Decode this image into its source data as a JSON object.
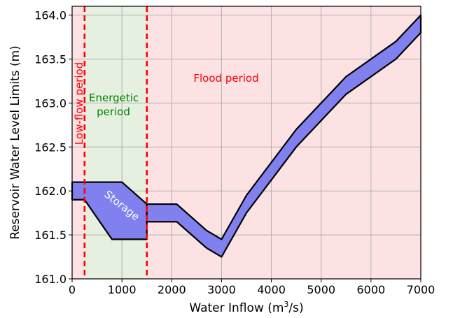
{
  "chart_data": {
    "type": "area",
    "xlabel": "Water Inflow (m",
    "xlabel_sup": "3",
    "xlabel_tail": "/s)",
    "ylabel": "Reservoir Water Level Limits (m)",
    "xlim": [
      0,
      7000
    ],
    "ylim": [
      161.0,
      164.1
    ],
    "x_ticks": [
      0,
      1000,
      2000,
      3000,
      4000,
      5000,
      6000,
      7000
    ],
    "x_tick_labels": [
      "0",
      "1000",
      "2000",
      "3000",
      "4000",
      "5000",
      "6000",
      "7000"
    ],
    "y_ticks": [
      161.0,
      161.5,
      162.0,
      162.5,
      163.0,
      163.5,
      164.0
    ],
    "y_tick_labels": [
      "161.0",
      "161.5",
      "162.0",
      "162.5",
      "163.0",
      "163.5",
      "164.0"
    ],
    "grid": true,
    "regions": [
      {
        "label": "Low-flow period",
        "x_start": 0,
        "x_end": 250,
        "color": "#fde2e4"
      },
      {
        "label_line1": "Energetic",
        "label_line2": "period",
        "x_start": 250,
        "x_end": 1500,
        "color": "#e6f0e1"
      },
      {
        "label": "Flood period",
        "x_start": 1500,
        "x_end": 7000,
        "color": "#fde2e4"
      }
    ],
    "boundaries": [
      250,
      1500
    ],
    "bands": [
      {
        "label": "Storage",
        "color": "#8080ee",
        "upper": [
          [
            0,
            162.1
          ],
          [
            1000,
            162.1
          ],
          [
            1500,
            161.85
          ]
        ],
        "lower": [
          [
            0,
            161.9
          ],
          [
            250,
            161.9
          ],
          [
            800,
            161.45
          ],
          [
            1500,
            161.45
          ]
        ]
      },
      {
        "color": "#8080ee",
        "upper": [
          [
            1500,
            161.85
          ],
          [
            2100,
            161.85
          ],
          [
            2700,
            161.55
          ],
          [
            3000,
            161.45
          ],
          [
            3500,
            161.95
          ],
          [
            4500,
            162.7
          ],
          [
            5500,
            163.3
          ],
          [
            6500,
            163.7
          ],
          [
            7000,
            164.0
          ]
        ],
        "lower": [
          [
            1500,
            161.65
          ],
          [
            2100,
            161.65
          ],
          [
            2700,
            161.35
          ],
          [
            3000,
            161.25
          ],
          [
            3500,
            161.75
          ],
          [
            4500,
            162.5
          ],
          [
            5500,
            163.1
          ],
          [
            6500,
            163.5
          ],
          [
            7000,
            163.8
          ]
        ]
      }
    ]
  },
  "colors": {
    "boundary": "#ff0000",
    "grid": "#b0b0b0",
    "low_flow_text": "#ff0000",
    "energetic_text": "#008000",
    "flood_text": "#ff0000",
    "storage_text": "#ffffff"
  }
}
